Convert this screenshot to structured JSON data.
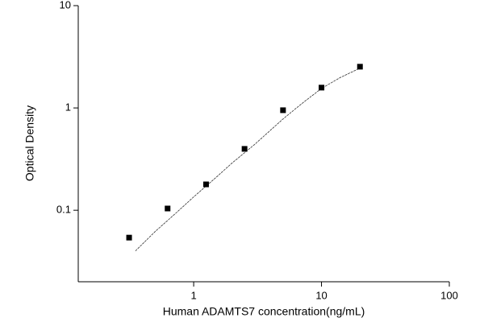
{
  "chart_data": {
    "type": "scatter",
    "x_label": "Human ADAMTS7 concentration(ng/mL)",
    "y_label": "Optical Density",
    "x": [
      0.3125,
      0.625,
      1.25,
      2.5,
      5,
      10,
      20
    ],
    "values": [
      0.054,
      0.104,
      0.179,
      0.398,
      0.95,
      1.58,
      2.53
    ],
    "color": "#000000",
    "fit_x": [
      0.35,
      0.5,
      0.7,
      1,
      1.5,
      2,
      3,
      5,
      7,
      10,
      14,
      20
    ],
    "fit_y": [
      0.04,
      0.062,
      0.09,
      0.135,
      0.21,
      0.29,
      0.44,
      0.78,
      1.1,
      1.55,
      1.98,
      2.45
    ],
    "xscale": "log",
    "yscale": "log",
    "xlim": [
      0.125,
      100
    ],
    "ylim": [
      0.02,
      10
    ],
    "xticks": [
      1,
      10,
      100
    ],
    "yticks": [
      0.1,
      1,
      10
    ]
  }
}
